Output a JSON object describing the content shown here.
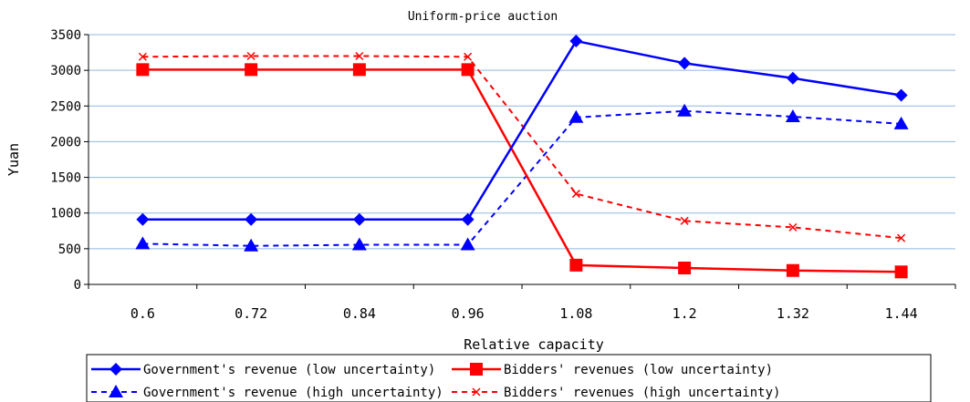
{
  "chart_data": {
    "type": "line",
    "title": "Uniform-price auction",
    "xlabel": "Relative capacity",
    "ylabel": "Yuan",
    "ylim": [
      0,
      3500
    ],
    "yticks": [
      "0",
      "500",
      "1000",
      "1500",
      "2000",
      "2500",
      "3000",
      "3500"
    ],
    "categories": [
      "0.6",
      "0.72",
      "0.84",
      "0.96",
      "1.08",
      "1.2",
      "1.32",
      "1.44"
    ],
    "grid": true,
    "legend_position": "bottom",
    "series": [
      {
        "name": "Government's revenue (low uncertainty)",
        "color": "#0000ff",
        "dash": "solid",
        "marker": "diamond",
        "values": [
          910,
          910,
          910,
          910,
          3410,
          3100,
          2890,
          2650
        ]
      },
      {
        "name": "Bidders' revenues (low uncertainty)",
        "color": "#ff0000",
        "dash": "solid",
        "marker": "square",
        "values": [
          3010,
          3010,
          3010,
          3010,
          270,
          230,
          195,
          175
        ]
      },
      {
        "name": "Government's revenue (high uncertainty)",
        "color": "#0000ff",
        "dash": "dashed",
        "marker": "triangle",
        "values": [
          570,
          540,
          555,
          555,
          2340,
          2430,
          2350,
          2250
        ]
      },
      {
        "name": "Bidders' revenues (high uncertainty)",
        "color": "#ff0000",
        "dash": "dashed",
        "marker": "x",
        "values": [
          3190,
          3200,
          3200,
          3190,
          1270,
          890,
          800,
          650
        ]
      }
    ]
  }
}
